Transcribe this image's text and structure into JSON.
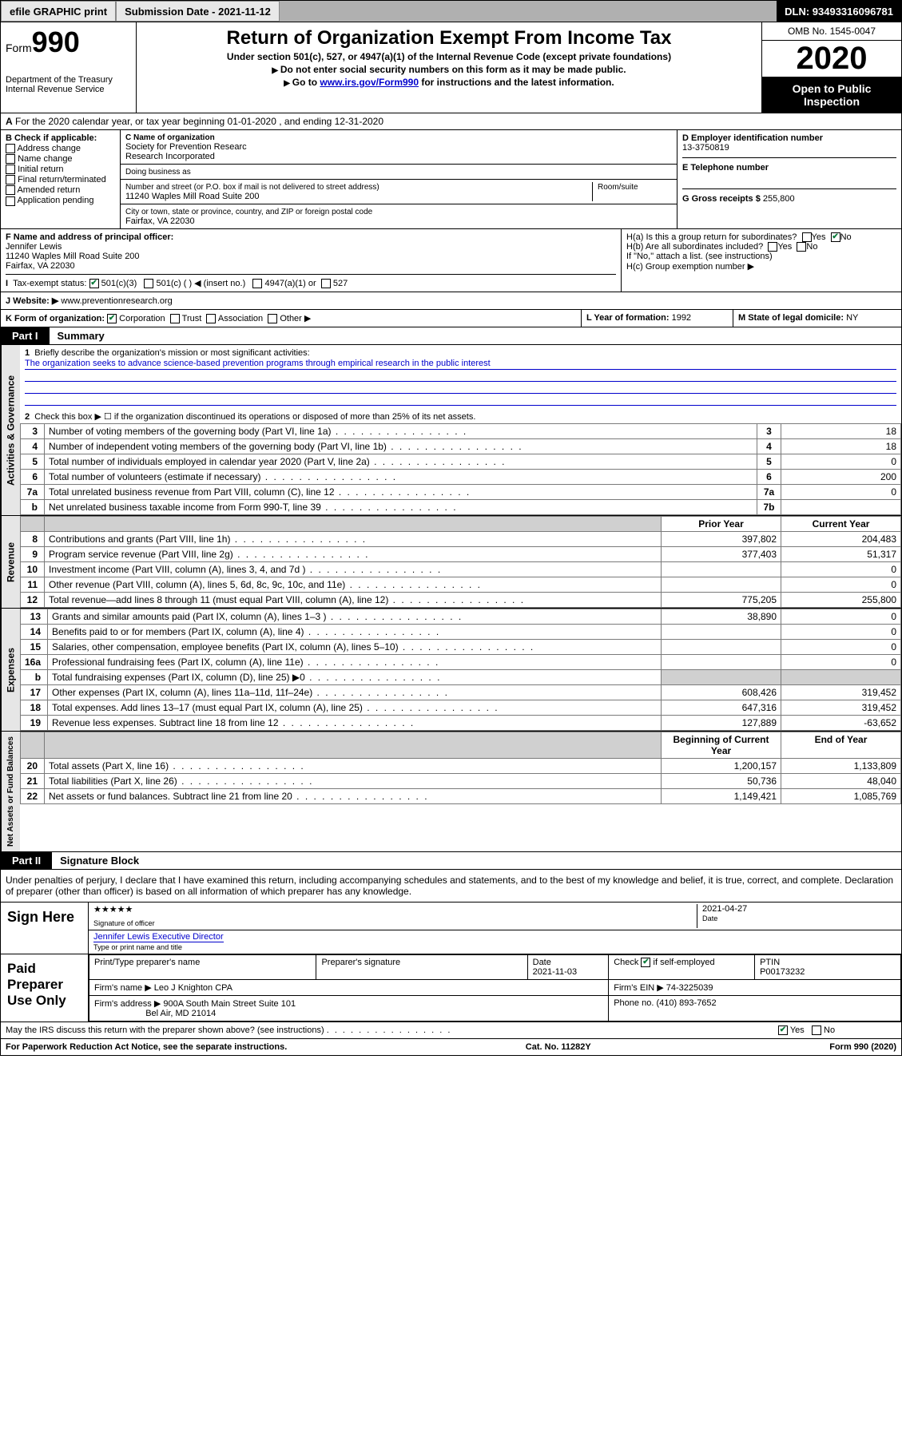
{
  "topbar": {
    "efile": "efile GRAPHIC print",
    "submission_label": "Submission Date - 2021-11-12",
    "dln": "DLN: 93493316096781"
  },
  "header": {
    "form_label": "Form",
    "form_number": "990",
    "dept": "Department of the Treasury\nInternal Revenue Service",
    "title": "Return of Organization Exempt From Income Tax",
    "subtitle": "Under section 501(c), 527, or 4947(a)(1) of the Internal Revenue Code (except private foundations)",
    "note1": "Do not enter social security numbers on this form as it may be made public.",
    "note2_pre": "Go to ",
    "note2_link": "www.irs.gov/Form990",
    "note2_post": " for instructions and the latest information.",
    "omb": "OMB No. 1545-0047",
    "year": "2020",
    "open": "Open to Public Inspection"
  },
  "line_a": "For the 2020 calendar year, or tax year beginning 01-01-2020    , and ending 12-31-2020",
  "b": {
    "label": "B Check if applicable:",
    "opts": [
      "Address change",
      "Name change",
      "Initial return",
      "Final return/terminated",
      "Amended return",
      "Application pending"
    ]
  },
  "c": {
    "name_label": "C Name of organization",
    "name": "Society for Prevention Researc\nResearch Incorporated",
    "dba_label": "Doing business as",
    "addr_label": "Number and street (or P.O. box if mail is not delivered to street address)",
    "room_label": "Room/suite",
    "addr": "11240 Waples Mill Road Suite 200",
    "city_label": "City or town, state or province, country, and ZIP or foreign postal code",
    "city": "Fairfax, VA  22030"
  },
  "d": {
    "label": "D Employer identification number",
    "value": "13-3750819"
  },
  "e": {
    "label": "E Telephone number"
  },
  "g": {
    "label": "G Gross receipts $",
    "value": "255,800"
  },
  "f": {
    "label": "F  Name and address of principal officer:",
    "name": "Jennifer Lewis",
    "addr1": "11240 Waples Mill Road Suite 200",
    "addr2": "Fairfax, VA  22030"
  },
  "h": {
    "a": "H(a)  Is this a group return for subordinates?",
    "b": "H(b)  Are all subordinates included?",
    "b_note": "If \"No,\" attach a list. (see instructions)",
    "c": "H(c)  Group exemption number ▶"
  },
  "i": {
    "label": "Tax-exempt status:",
    "opts": [
      "501(c)(3)",
      "501(c) (   ) ◀ (insert no.)",
      "4947(a)(1) or",
      "527"
    ]
  },
  "j": {
    "label": "J   Website: ▶ ",
    "value": "www.preventionresearch.org"
  },
  "k": {
    "label": "K Form of organization:",
    "opts": [
      "Corporation",
      "Trust",
      "Association",
      "Other ▶"
    ]
  },
  "l": {
    "label": "L Year of formation:",
    "value": "1992"
  },
  "m": {
    "label": "M State of legal domicile:",
    "value": "NY"
  },
  "part1": {
    "tab": "Part I",
    "title": "Summary",
    "line1_label": "Briefly describe the organization's mission or most significant activities:",
    "mission": "The organization seeks to advance science-based prevention programs through empirical research in the public interest",
    "line2": "Check this box ▶ ☐  if the organization discontinued its operations or disposed of more than 25% of its net assets."
  },
  "gov_rows": [
    {
      "n": "3",
      "t": "Number of voting members of the governing body (Part VI, line 1a)",
      "box": "3",
      "v": "18"
    },
    {
      "n": "4",
      "t": "Number of independent voting members of the governing body (Part VI, line 1b)",
      "box": "4",
      "v": "18"
    },
    {
      "n": "5",
      "t": "Total number of individuals employed in calendar year 2020 (Part V, line 2a)",
      "box": "5",
      "v": "0"
    },
    {
      "n": "6",
      "t": "Total number of volunteers (estimate if necessary)",
      "box": "6",
      "v": "200"
    },
    {
      "n": "7a",
      "t": "Total unrelated business revenue from Part VIII, column (C), line 12",
      "box": "7a",
      "v": "0"
    },
    {
      "n": "b",
      "t": "Net unrelated business taxable income from Form 990-T, line 39",
      "box": "7b",
      "v": ""
    }
  ],
  "rev_hdr": {
    "py": "Prior Year",
    "cy": "Current Year"
  },
  "rev_rows": [
    {
      "n": "8",
      "t": "Contributions and grants (Part VIII, line 1h)",
      "py": "397,802",
      "cy": "204,483"
    },
    {
      "n": "9",
      "t": "Program service revenue (Part VIII, line 2g)",
      "py": "377,403",
      "cy": "51,317"
    },
    {
      "n": "10",
      "t": "Investment income (Part VIII, column (A), lines 3, 4, and 7d )",
      "py": "",
      "cy": "0"
    },
    {
      "n": "11",
      "t": "Other revenue (Part VIII, column (A), lines 5, 6d, 8c, 9c, 10c, and 11e)",
      "py": "",
      "cy": "0"
    },
    {
      "n": "12",
      "t": "Total revenue—add lines 8 through 11 (must equal Part VIII, column (A), line 12)",
      "py": "775,205",
      "cy": "255,800"
    }
  ],
  "exp_rows": [
    {
      "n": "13",
      "t": "Grants and similar amounts paid (Part IX, column (A), lines 1–3 )",
      "py": "38,890",
      "cy": "0"
    },
    {
      "n": "14",
      "t": "Benefits paid to or for members (Part IX, column (A), line 4)",
      "py": "",
      "cy": "0"
    },
    {
      "n": "15",
      "t": "Salaries, other compensation, employee benefits (Part IX, column (A), lines 5–10)",
      "py": "",
      "cy": "0"
    },
    {
      "n": "16a",
      "t": "Professional fundraising fees (Part IX, column (A), line 11e)",
      "py": "",
      "cy": "0"
    },
    {
      "n": "b",
      "t": "Total fundraising expenses (Part IX, column (D), line 25) ▶0",
      "py": "shade",
      "cy": "shade"
    },
    {
      "n": "17",
      "t": "Other expenses (Part IX, column (A), lines 11a–11d, 11f–24e)",
      "py": "608,426",
      "cy": "319,452"
    },
    {
      "n": "18",
      "t": "Total expenses. Add lines 13–17 (must equal Part IX, column (A), line 25)",
      "py": "647,316",
      "cy": "319,452"
    },
    {
      "n": "19",
      "t": "Revenue less expenses. Subtract line 18 from line 12",
      "py": "127,889",
      "cy": "-63,652"
    }
  ],
  "na_hdr": {
    "bcy": "Beginning of Current Year",
    "eoy": "End of Year"
  },
  "na_rows": [
    {
      "n": "20",
      "t": "Total assets (Part X, line 16)",
      "py": "1,200,157",
      "cy": "1,133,809"
    },
    {
      "n": "21",
      "t": "Total liabilities (Part X, line 26)",
      "py": "50,736",
      "cy": "48,040"
    },
    {
      "n": "22",
      "t": "Net assets or fund balances. Subtract line 21 from line 20",
      "py": "1,149,421",
      "cy": "1,085,769"
    }
  ],
  "part2": {
    "tab": "Part II",
    "title": "Signature Block",
    "perjury": "Under penalties of perjury, I declare that I have examined this return, including accompanying schedules and statements, and to the best of my knowledge and belief, it is true, correct, and complete. Declaration of preparer (other than officer) is based on all information of which preparer has any knowledge."
  },
  "sign": {
    "left": "Sign Here",
    "sig_label": "Signature of officer",
    "date": "2021-04-27",
    "date_label": "Date",
    "name": "Jennifer Lewis  Executive Director",
    "name_label": "Type or print name and title"
  },
  "paid": {
    "left": "Paid Preparer Use Only",
    "h1": "Print/Type preparer's name",
    "h2": "Preparer's signature",
    "h3": "Date",
    "date": "2021-11-03",
    "h4_pre": "Check",
    "h4_post": "if self-employed",
    "h5": "PTIN",
    "ptin": "P00173232",
    "firm_name_label": "Firm's name     ▶",
    "firm_name": "Leo J Knighton CPA",
    "ein_label": "Firm's EIN ▶",
    "ein": "74-3225039",
    "addr_label": "Firm's address ▶",
    "addr1": "900A South Main Street Suite 101",
    "addr2": "Bel Air, MD  21014",
    "phone_label": "Phone no.",
    "phone": "(410) 893-7652"
  },
  "discuss": "May the IRS discuss this return with the preparer shown above? (see instructions)",
  "footer": {
    "left": "For Paperwork Reduction Act Notice, see the separate instructions.",
    "mid": "Cat. No. 11282Y",
    "right": "Form 990 (2020)"
  }
}
